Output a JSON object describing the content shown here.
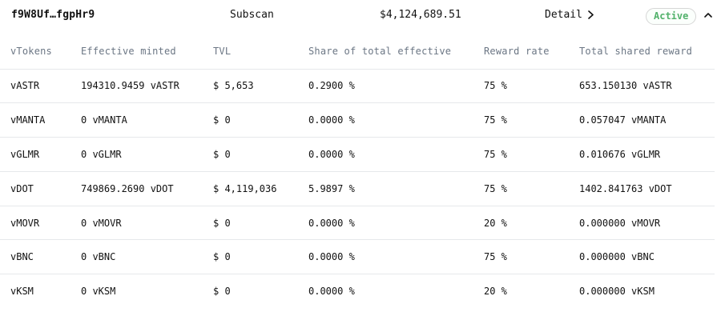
{
  "header": {
    "address": "f9W8Uf…fgpHr9",
    "explorer_label": "Subscan",
    "total_value": "$4,124,689.51",
    "detail_label": "Detail",
    "status_badge": "Active"
  },
  "table": {
    "columns": [
      "vTokens",
      "Effective minted",
      "TVL",
      "Share of total effective",
      "Reward rate",
      "Total shared reward"
    ],
    "rows": [
      [
        "vASTR",
        "194310.9459 vASTR",
        "$ 5,653",
        "0.2900 %",
        "75 %",
        "653.150130 vASTR"
      ],
      [
        "vMANTA",
        "0 vMANTA",
        "$ 0",
        "0.0000 %",
        "75 %",
        "0.057047 vMANTA"
      ],
      [
        "vGLMR",
        "0 vGLMR",
        "$ 0",
        "0.0000 %",
        "75 %",
        "0.010676 vGLMR"
      ],
      [
        "vDOT",
        "749869.2690 vDOT",
        "$ 4,119,036",
        "5.9897 %",
        "75 %",
        "1402.841763 vDOT"
      ],
      [
        "vMOVR",
        "0 vMOVR",
        "$ 0",
        "0.0000 %",
        "20 %",
        "0.000000 vMOVR"
      ],
      [
        "vBNC",
        "0 vBNC",
        "$ 0",
        "0.0000 %",
        "75 %",
        "0.000000 vBNC"
      ],
      [
        "vKSM",
        "0 vKSM",
        "$ 0",
        "0.0000 %",
        "20 %",
        "0.000000 vKSM"
      ]
    ]
  },
  "icons": {
    "detail": "chevron-right-icon",
    "collapse": "chevron-up-icon"
  },
  "colors": {
    "active_badge_text": "#52b26b",
    "header_text": "#6b7684",
    "divider": "#e6e8eb"
  }
}
